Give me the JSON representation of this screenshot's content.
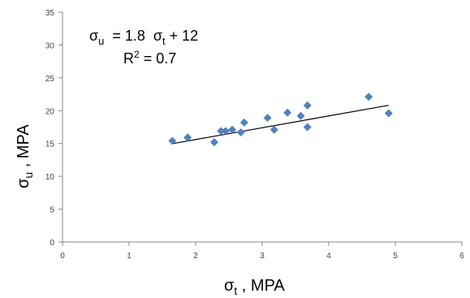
{
  "chart_data": {
    "type": "scatter",
    "xlim": [
      0,
      6
    ],
    "ylim": [
      0,
      35
    ],
    "x_ticks": [
      0,
      1,
      2,
      3,
      4,
      5,
      6
    ],
    "y_ticks": [
      0,
      5,
      10,
      15,
      20,
      25,
      30,
      35
    ],
    "xlabel": {
      "main": "σ",
      "sub": "t",
      "rest": " , MPA"
    },
    "ylabel": {
      "main": "σ",
      "sub": "u",
      "rest": " , MPA"
    },
    "grid": false,
    "legend": "none",
    "marker_color": "#4f81bd",
    "trendline_color": "#000000",
    "points": [
      {
        "x": 1.65,
        "y": 15.4
      },
      {
        "x": 1.88,
        "y": 15.9
      },
      {
        "x": 2.28,
        "y": 15.2
      },
      {
        "x": 2.38,
        "y": 16.9
      },
      {
        "x": 2.45,
        "y": 16.9
      },
      {
        "x": 2.55,
        "y": 17.1
      },
      {
        "x": 2.68,
        "y": 16.7
      },
      {
        "x": 2.73,
        "y": 18.2
      },
      {
        "x": 3.08,
        "y": 18.9
      },
      {
        "x": 3.18,
        "y": 17.1
      },
      {
        "x": 3.38,
        "y": 19.7
      },
      {
        "x": 3.58,
        "y": 19.2
      },
      {
        "x": 3.68,
        "y": 20.8
      },
      {
        "x": 3.68,
        "y": 17.5
      },
      {
        "x": 4.6,
        "y": 22.1
      },
      {
        "x": 4.9,
        "y": 19.6
      }
    ],
    "trendline": {
      "slope": 1.8,
      "intercept": 12,
      "x_range": [
        1.65,
        4.9
      ]
    },
    "annotation": {
      "line1": {
        "lhs_main": "σ",
        "lhs_sub": "u",
        "mid": "  = 1.8  σ",
        "mid_sub": "t",
        "tail": " + 12"
      },
      "line2": {
        "lhs": "R",
        "sup": "2",
        "tail": " = 0.7"
      }
    }
  }
}
